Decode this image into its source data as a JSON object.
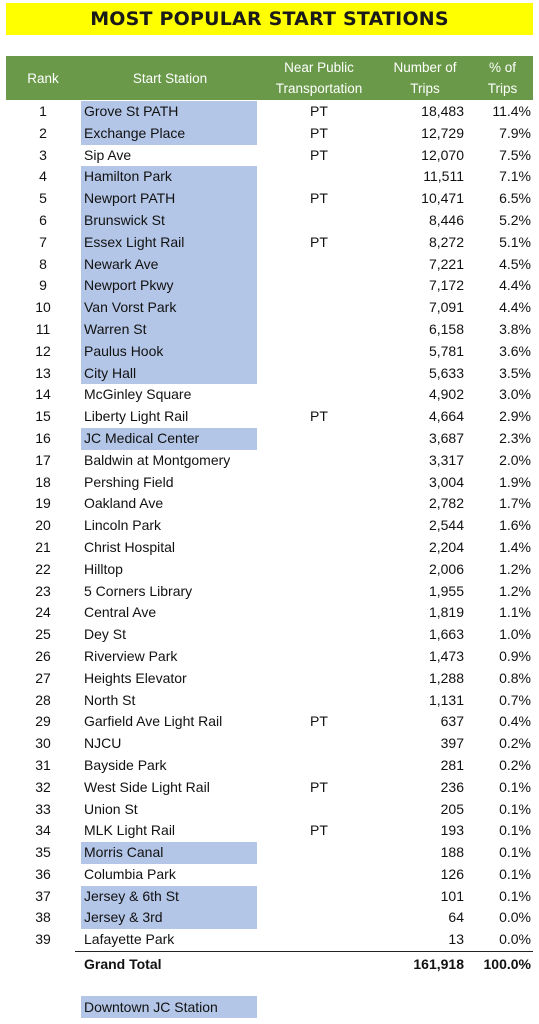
{
  "title": "MOST POPULAR START STATIONS",
  "headers": {
    "rank": "Rank",
    "station": "Start Station",
    "pt_line1": "Near Public",
    "pt_line2": "Transportation",
    "num_line1": "Number of",
    "num_line2": "Trips",
    "pct_line1": "% of",
    "pct_line2": "Trips"
  },
  "colors": {
    "title_bg": "#ffff00",
    "header_bg": "#6a9a49",
    "highlight": "#b4c6e7"
  },
  "rows": [
    {
      "rank": "1",
      "name": "Grove St PATH",
      "pt": "PT",
      "trips": "18,483",
      "pct": "11.4%",
      "downtown": true
    },
    {
      "rank": "2",
      "name": "Exchange Place",
      "pt": "PT",
      "trips": "12,729",
      "pct": "7.9%",
      "downtown": true
    },
    {
      "rank": "3",
      "name": "Sip Ave",
      "pt": "PT",
      "trips": "12,070",
      "pct": "7.5%",
      "downtown": false
    },
    {
      "rank": "4",
      "name": "Hamilton Park",
      "pt": "",
      "trips": "11,511",
      "pct": "7.1%",
      "downtown": true
    },
    {
      "rank": "5",
      "name": "Newport PATH",
      "pt": "PT",
      "trips": "10,471",
      "pct": "6.5%",
      "downtown": true
    },
    {
      "rank": "6",
      "name": "Brunswick St",
      "pt": "",
      "trips": "8,446",
      "pct": "5.2%",
      "downtown": true
    },
    {
      "rank": "7",
      "name": "Essex Light Rail",
      "pt": "PT",
      "trips": "8,272",
      "pct": "5.1%",
      "downtown": true
    },
    {
      "rank": "8",
      "name": "Newark Ave",
      "pt": "",
      "trips": "7,221",
      "pct": "4.5%",
      "downtown": true
    },
    {
      "rank": "9",
      "name": "Newport Pkwy",
      "pt": "",
      "trips": "7,172",
      "pct": "4.4%",
      "downtown": true
    },
    {
      "rank": "10",
      "name": "Van Vorst Park",
      "pt": "",
      "trips": "7,091",
      "pct": "4.4%",
      "downtown": true
    },
    {
      "rank": "11",
      "name": "Warren St",
      "pt": "",
      "trips": "6,158",
      "pct": "3.8%",
      "downtown": true
    },
    {
      "rank": "12",
      "name": "Paulus Hook",
      "pt": "",
      "trips": "5,781",
      "pct": "3.6%",
      "downtown": true
    },
    {
      "rank": "13",
      "name": "City Hall",
      "pt": "",
      "trips": "5,633",
      "pct": "3.5%",
      "downtown": true
    },
    {
      "rank": "14",
      "name": "McGinley Square",
      "pt": "",
      "trips": "4,902",
      "pct": "3.0%",
      "downtown": false
    },
    {
      "rank": "15",
      "name": "Liberty Light Rail",
      "pt": "PT",
      "trips": "4,664",
      "pct": "2.9%",
      "downtown": false
    },
    {
      "rank": "16",
      "name": "JC Medical Center",
      "pt": "",
      "trips": "3,687",
      "pct": "2.3%",
      "downtown": true
    },
    {
      "rank": "17",
      "name": "Baldwin at Montgomery",
      "pt": "",
      "trips": "3,317",
      "pct": "2.0%",
      "downtown": false
    },
    {
      "rank": "18",
      "name": "Pershing Field",
      "pt": "",
      "trips": "3,004",
      "pct": "1.9%",
      "downtown": false
    },
    {
      "rank": "19",
      "name": "Oakland Ave",
      "pt": "",
      "trips": "2,782",
      "pct": "1.7%",
      "downtown": false
    },
    {
      "rank": "20",
      "name": "Lincoln Park",
      "pt": "",
      "trips": "2,544",
      "pct": "1.6%",
      "downtown": false
    },
    {
      "rank": "21",
      "name": "Christ Hospital",
      "pt": "",
      "trips": "2,204",
      "pct": "1.4%",
      "downtown": false
    },
    {
      "rank": "22",
      "name": "Hilltop",
      "pt": "",
      "trips": "2,006",
      "pct": "1.2%",
      "downtown": false
    },
    {
      "rank": "23",
      "name": "5 Corners Library",
      "pt": "",
      "trips": "1,955",
      "pct": "1.2%",
      "downtown": false
    },
    {
      "rank": "24",
      "name": "Central Ave",
      "pt": "",
      "trips": "1,819",
      "pct": "1.1%",
      "downtown": false
    },
    {
      "rank": "25",
      "name": "Dey St",
      "pt": "",
      "trips": "1,663",
      "pct": "1.0%",
      "downtown": false
    },
    {
      "rank": "26",
      "name": "Riverview Park",
      "pt": "",
      "trips": "1,473",
      "pct": "0.9%",
      "downtown": false
    },
    {
      "rank": "27",
      "name": "Heights Elevator",
      "pt": "",
      "trips": "1,288",
      "pct": "0.8%",
      "downtown": false
    },
    {
      "rank": "28",
      "name": "North St",
      "pt": "",
      "trips": "1,131",
      "pct": "0.7%",
      "downtown": false
    },
    {
      "rank": "29",
      "name": "Garfield Ave Light Rail",
      "pt": "PT",
      "trips": "637",
      "pct": "0.4%",
      "downtown": false
    },
    {
      "rank": "30",
      "name": "NJCU",
      "pt": "",
      "trips": "397",
      "pct": "0.2%",
      "downtown": false
    },
    {
      "rank": "31",
      "name": "Bayside Park",
      "pt": "",
      "trips": "281",
      "pct": "0.2%",
      "downtown": false
    },
    {
      "rank": "32",
      "name": "West Side Light Rail",
      "pt": "PT",
      "trips": "236",
      "pct": "0.1%",
      "downtown": false
    },
    {
      "rank": "33",
      "name": "Union St",
      "pt": "",
      "trips": "205",
      "pct": "0.1%",
      "downtown": false
    },
    {
      "rank": "34",
      "name": "MLK Light Rail",
      "pt": "PT",
      "trips": "193",
      "pct": "0.1%",
      "downtown": false
    },
    {
      "rank": "35",
      "name": "Morris Canal",
      "pt": "",
      "trips": "188",
      "pct": "0.1%",
      "downtown": true
    },
    {
      "rank": "36",
      "name": "Columbia Park",
      "pt": "",
      "trips": "126",
      "pct": "0.1%",
      "downtown": false
    },
    {
      "rank": "37",
      "name": "Jersey & 6th St",
      "pt": "",
      "trips": "101",
      "pct": "0.1%",
      "downtown": true
    },
    {
      "rank": "38",
      "name": "Jersey & 3rd",
      "pt": "",
      "trips": "64",
      "pct": "0.0%",
      "downtown": true
    },
    {
      "rank": "39",
      "name": "Lafayette Park",
      "pt": "",
      "trips": "13",
      "pct": "0.0%",
      "downtown": false
    }
  ],
  "total": {
    "label": "Grand Total",
    "trips": "161,918",
    "pct": "100.0%"
  },
  "legend": {
    "label": "Downtown JC Station"
  }
}
